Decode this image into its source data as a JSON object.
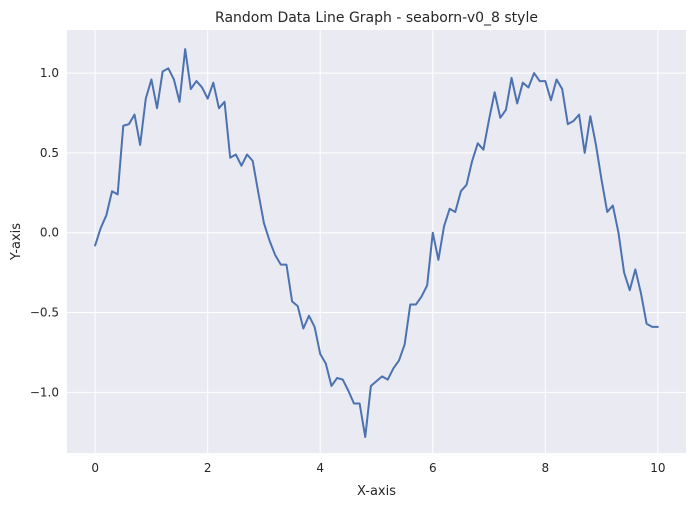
{
  "chart_data": {
    "type": "line",
    "title": "Random Data Line Graph - seaborn-v0_8 style",
    "xlabel": "X-axis",
    "ylabel": "Y-axis",
    "xlim": [
      -0.5,
      10.5
    ],
    "ylim": [
      -1.38,
      1.27
    ],
    "xticks": [
      0,
      2,
      4,
      6,
      8,
      10
    ],
    "xtick_labels": [
      "0",
      "2",
      "4",
      "6",
      "8",
      "10"
    ],
    "yticks": [
      -1.0,
      -0.5,
      0.0,
      0.5,
      1.0
    ],
    "ytick_labels": [
      "−1.0",
      "−0.5",
      "0.0",
      "0.5",
      "1.0"
    ],
    "grid": true,
    "colors": {
      "line": "#4c72b0",
      "plot_background": "#eaeaf2",
      "grid": "#ffffff"
    },
    "series": [
      {
        "x": [
          0.0,
          0.1,
          0.2,
          0.3,
          0.4,
          0.5,
          0.6,
          0.7,
          0.8,
          0.9,
          1.0,
          1.1,
          1.2,
          1.3,
          1.4,
          1.5,
          1.6,
          1.7,
          1.8,
          1.9,
          2.0,
          2.1,
          2.2,
          2.3,
          2.4,
          2.5,
          2.6,
          2.7,
          2.8,
          2.9,
          3.0,
          3.1,
          3.2,
          3.3,
          3.4,
          3.5,
          3.6,
          3.7,
          3.8,
          3.9,
          4.0,
          4.1,
          4.2,
          4.3,
          4.4,
          4.5,
          4.6,
          4.7,
          4.8,
          4.9,
          5.0,
          5.1,
          5.2,
          5.3,
          5.4,
          5.5,
          5.6,
          5.7,
          5.8,
          5.9,
          6.0,
          6.1,
          6.2,
          6.3,
          6.4,
          6.5,
          6.6,
          6.7,
          6.8,
          6.9,
          7.0,
          7.1,
          7.2,
          7.3,
          7.4,
          7.5,
          7.6,
          7.7,
          7.8,
          7.9,
          8.0,
          8.1,
          8.2,
          8.3,
          8.4,
          8.5,
          8.6,
          8.7,
          8.8,
          8.9,
          9.0,
          9.1,
          9.2,
          9.3,
          9.4,
          9.5,
          9.6,
          9.7,
          9.8,
          9.9,
          10.0
        ],
        "values": [
          -0.08,
          0.03,
          0.11,
          0.26,
          0.24,
          0.67,
          0.68,
          0.74,
          0.55,
          0.84,
          0.96,
          0.78,
          1.01,
          1.03,
          0.96,
          0.82,
          1.15,
          0.9,
          0.95,
          0.91,
          0.84,
          0.94,
          0.78,
          0.82,
          0.47,
          0.49,
          0.42,
          0.49,
          0.45,
          0.25,
          0.06,
          -0.05,
          -0.14,
          -0.2,
          -0.2,
          -0.43,
          -0.46,
          -0.6,
          -0.52,
          -0.59,
          -0.76,
          -0.82,
          -0.96,
          -0.91,
          -0.92,
          -0.99,
          -1.07,
          -1.07,
          -1.28,
          -0.96,
          -0.93,
          -0.9,
          -0.92,
          -0.85,
          -0.8,
          -0.7,
          -0.45,
          -0.45,
          -0.4,
          -0.33,
          0.0,
          -0.17,
          0.04,
          0.15,
          0.13,
          0.26,
          0.3,
          0.45,
          0.56,
          0.52,
          0.71,
          0.88,
          0.72,
          0.77,
          0.97,
          0.81,
          0.94,
          0.91,
          1.0,
          0.95,
          0.95,
          0.83,
          0.96,
          0.9,
          0.68,
          0.7,
          0.74,
          0.5,
          0.73,
          0.55,
          0.33,
          0.13,
          0.17,
          0.0,
          -0.25,
          -0.36,
          -0.23,
          -0.38,
          -0.57,
          -0.59,
          -0.59
        ]
      }
    ]
  }
}
